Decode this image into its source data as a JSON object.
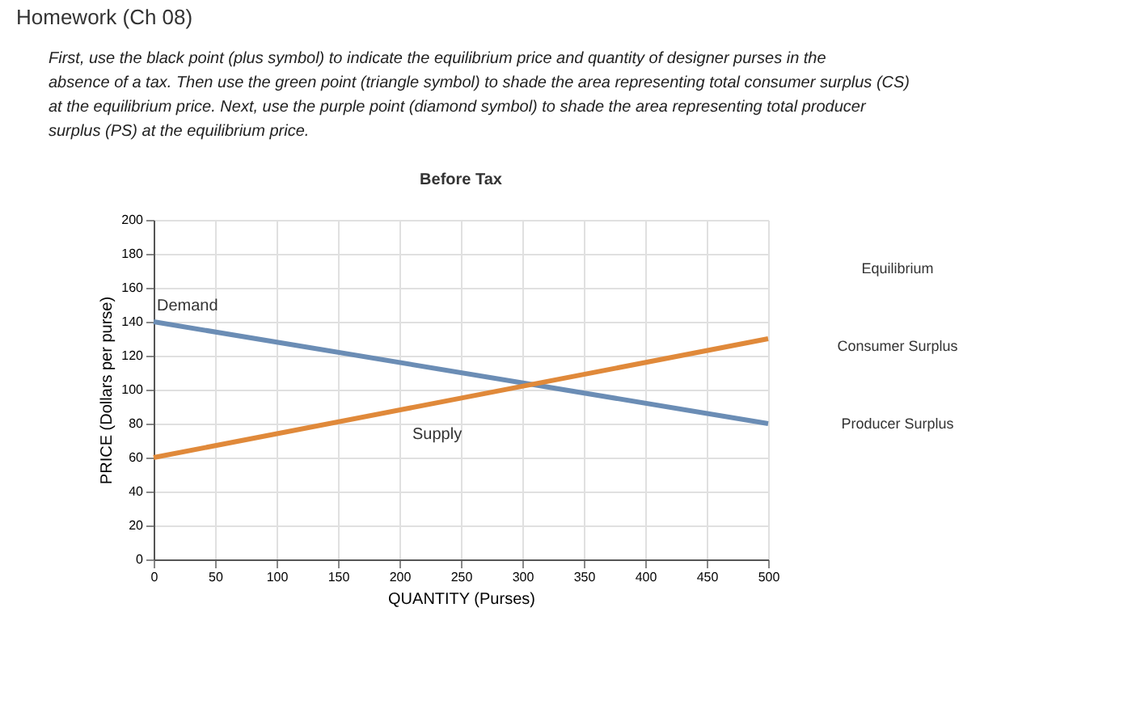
{
  "chart_data": {
    "type": "line",
    "title": "Before Tax",
    "xlabel": "QUANTITY (Purses)",
    "ylabel": "PRICE (Dollars per purse)",
    "x": [
      0,
      500
    ],
    "series": [
      {
        "name": "Demand",
        "color": "#6b8db5",
        "values": [
          140,
          80
        ]
      },
      {
        "name": "Supply",
        "color": "#e0893a",
        "values": [
          60,
          130
        ]
      }
    ],
    "xlim": [
      0,
      500
    ],
    "xticks": [
      0,
      50,
      100,
      150,
      200,
      250,
      300,
      350,
      400,
      450,
      500
    ],
    "ylim": [
      0,
      200
    ],
    "yticks": [
      0,
      20,
      40,
      60,
      80,
      100,
      120,
      140,
      160,
      180,
      200
    ],
    "grid": true,
    "legend": false,
    "marker": "none",
    "line_style": "solid",
    "annotations": [
      "Homework (Ch 08)",
      "First, use the black point (plus symbol) to indicate the equilibrium price and quantity of designer purses in the absence of a tax. Then use the green point (triangle symbol) to shade the area representing total consumer surplus (CS) at the equilibrium price. Next, use the purple point (diamond symbol) to shade the area representing total producer surplus (PS) at the equilibrium price.",
      "Equilibrium",
      "Consumer Surplus",
      "Producer Surplus"
    ]
  }
}
